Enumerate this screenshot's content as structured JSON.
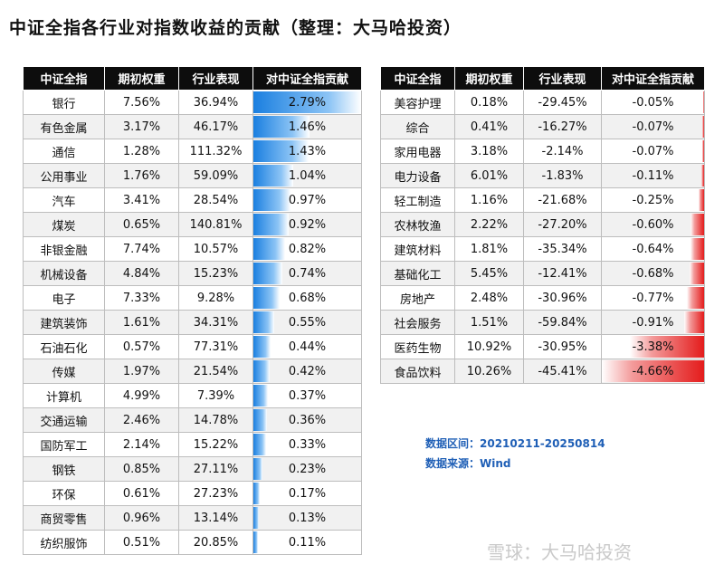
{
  "title": "中证全指各行业对指数收益的贡献（整理：大马哈投资）",
  "headers": [
    "中证全指",
    "期初权重",
    "行业表现",
    "对中证全指贡献"
  ],
  "notes": {
    "range": "数据区间：20210211-20250814",
    "source": "数据来源：Wind"
  },
  "watermark": "雪球：大马哈投资",
  "colors": {
    "positive": "#1a7fe0",
    "negative": "#e41c1c",
    "header": "#0d0d0d"
  },
  "chart_data": [
    {
      "type": "table",
      "columns": [
        "中证全指",
        "期初权重",
        "行业表现",
        "对中证全指贡献"
      ],
      "rows": [
        [
          "银行",
          "7.56%",
          "36.94%",
          "2.79%"
        ],
        [
          "有色金属",
          "3.17%",
          "46.17%",
          "1.46%"
        ],
        [
          "通信",
          "1.28%",
          "111.32%",
          "1.43%"
        ],
        [
          "公用事业",
          "1.76%",
          "59.09%",
          "1.04%"
        ],
        [
          "汽车",
          "3.41%",
          "28.54%",
          "0.97%"
        ],
        [
          "煤炭",
          "0.65%",
          "140.81%",
          "0.92%"
        ],
        [
          "非银金融",
          "7.74%",
          "10.57%",
          "0.82%"
        ],
        [
          "机械设备",
          "4.84%",
          "15.23%",
          "0.74%"
        ],
        [
          "电子",
          "7.33%",
          "9.28%",
          "0.68%"
        ],
        [
          "建筑装饰",
          "1.61%",
          "34.31%",
          "0.55%"
        ],
        [
          "石油石化",
          "0.57%",
          "77.31%",
          "0.44%"
        ],
        [
          "传媒",
          "1.97%",
          "21.54%",
          "0.42%"
        ],
        [
          "计算机",
          "4.99%",
          "7.39%",
          "0.37%"
        ],
        [
          "交通运输",
          "2.46%",
          "14.78%",
          "0.36%"
        ],
        [
          "国防军工",
          "2.14%",
          "15.22%",
          "0.33%"
        ],
        [
          "钢铁",
          "0.85%",
          "27.11%",
          "0.23%"
        ],
        [
          "环保",
          "0.61%",
          "27.23%",
          "0.17%"
        ],
        [
          "商贸零售",
          "0.96%",
          "13.14%",
          "0.13%"
        ],
        [
          "纺织服饰",
          "0.51%",
          "20.85%",
          "0.11%"
        ]
      ],
      "contribution_values": [
        2.79,
        1.46,
        1.43,
        1.04,
        0.97,
        0.92,
        0.82,
        0.74,
        0.68,
        0.55,
        0.44,
        0.42,
        0.37,
        0.36,
        0.33,
        0.23,
        0.17,
        0.13,
        0.11
      ]
    },
    {
      "type": "table",
      "columns": [
        "中证全指",
        "期初权重",
        "行业表现",
        "对中证全指贡献"
      ],
      "rows": [
        [
          "美容护理",
          "0.18%",
          "-29.45%",
          "-0.05%"
        ],
        [
          "综合",
          "0.41%",
          "-16.27%",
          "-0.07%"
        ],
        [
          "家用电器",
          "3.18%",
          "-2.14%",
          "-0.07%"
        ],
        [
          "电力设备",
          "6.01%",
          "-1.83%",
          "-0.11%"
        ],
        [
          "轻工制造",
          "1.16%",
          "-21.68%",
          "-0.25%"
        ],
        [
          "农林牧渔",
          "2.22%",
          "-27.20%",
          "-0.60%"
        ],
        [
          "建筑材料",
          "1.81%",
          "-35.34%",
          "-0.64%"
        ],
        [
          "基础化工",
          "5.45%",
          "-12.41%",
          "-0.68%"
        ],
        [
          "房地产",
          "2.48%",
          "-30.96%",
          "-0.77%"
        ],
        [
          "社会服务",
          "1.51%",
          "-59.84%",
          "-0.91%"
        ],
        [
          "医药生物",
          "10.92%",
          "-30.95%",
          "-3.38%"
        ],
        [
          "食品饮料",
          "10.26%",
          "-45.41%",
          "-4.66%"
        ]
      ],
      "contribution_values": [
        -0.05,
        -0.07,
        -0.07,
        -0.11,
        -0.25,
        -0.6,
        -0.64,
        -0.68,
        -0.77,
        -0.91,
        -3.38,
        -4.66
      ]
    }
  ]
}
